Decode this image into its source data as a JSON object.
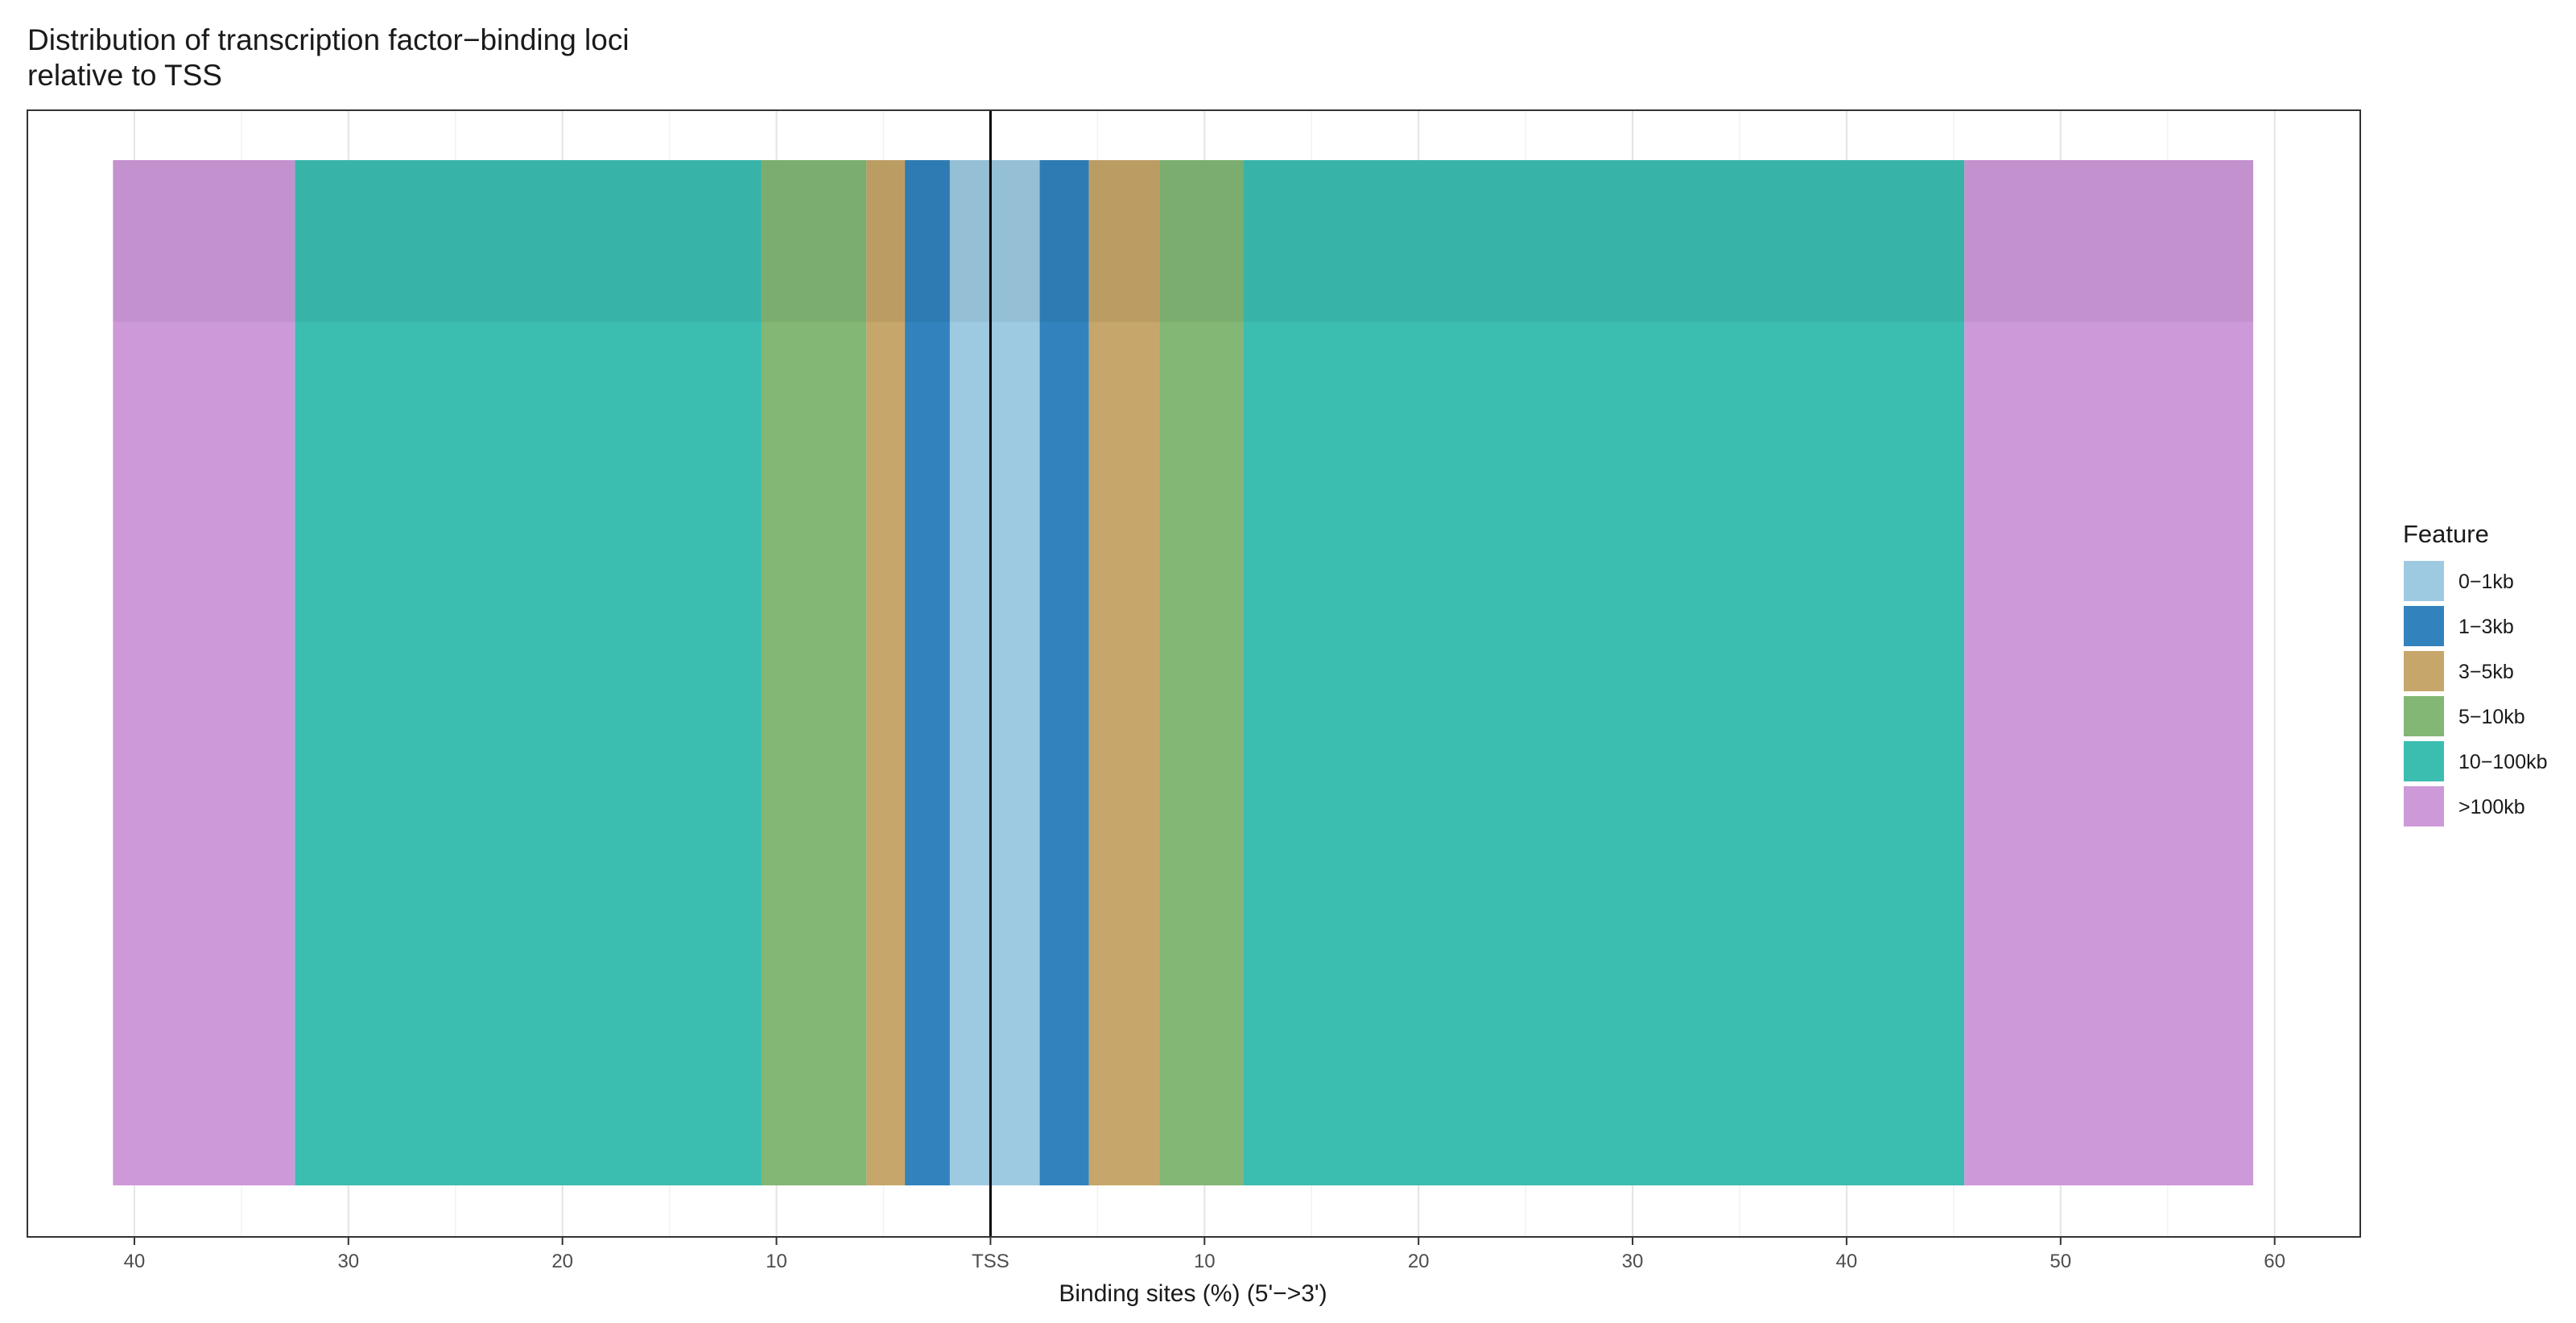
{
  "chart_data": {
    "type": "bar",
    "orientation": "horizontal-stacked-diverging",
    "title_lines": [
      "Distribution of transcription factor−binding loci",
      "relative to TSS"
    ],
    "xlabel": "Binding sites (%) (5'−>3')",
    "ylabel": "",
    "xlim": [
      -45,
      64
    ],
    "center_label": "TSS",
    "ticks": [
      {
        "value": -40,
        "label": "40"
      },
      {
        "value": -30,
        "label": "30"
      },
      {
        "value": -20,
        "label": "20"
      },
      {
        "value": -10,
        "label": "10"
      },
      {
        "value": 0,
        "label": "TSS"
      },
      {
        "value": 10,
        "label": "10"
      },
      {
        "value": 20,
        "label": "20"
      },
      {
        "value": 30,
        "label": "30"
      },
      {
        "value": 40,
        "label": "40"
      },
      {
        "value": 50,
        "label": "50"
      },
      {
        "value": 60,
        "label": "60"
      }
    ],
    "grid": true,
    "legend": {
      "title": "Feature",
      "position": "right"
    },
    "series": [
      {
        "name": "0−1kb",
        "color": "#9ECAE1",
        "upstream": 1.9,
        "downstream": 2.3
      },
      {
        "name": "1−3kb",
        "color": "#3182BD",
        "upstream": 2.1,
        "downstream": 2.3
      },
      {
        "name": "3−5kb",
        "color": "#C6A66A",
        "upstream": 1.8,
        "downstream": 3.3
      },
      {
        "name": "5−10kb",
        "color": "#82B775",
        "upstream": 4.9,
        "downstream": 3.9
      },
      {
        "name": "10−100kb",
        "color": "#3BBDB0",
        "upstream": 21.8,
        "downstream": 33.7
      },
      {
        "name": ">100kb",
        "color": "#CE99D8",
        "upstream": 8.5,
        "downstream": 13.5
      }
    ]
  }
}
